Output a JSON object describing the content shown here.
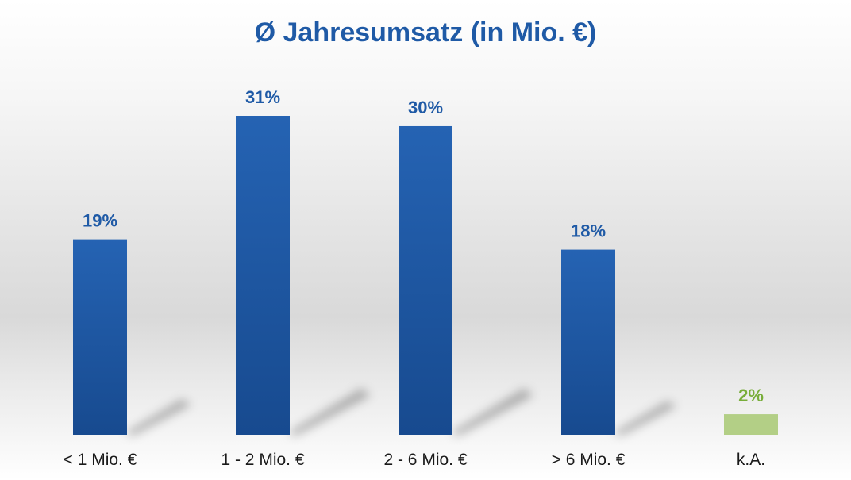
{
  "chart_data": {
    "type": "bar",
    "title": "Ø Jahresumsatz (in Mio. €)",
    "xlabel": "",
    "ylabel": "",
    "ylim": [
      0,
      35
    ],
    "grid": false,
    "legend": "none",
    "categories": [
      "< 1 Mio. €",
      "1 - 2 Mio. €",
      "2 - 6 Mio. €",
      "> 6 Mio. €",
      "k.A."
    ],
    "values": [
      19,
      31,
      30,
      18,
      2
    ],
    "data_labels": [
      "19%",
      "31%",
      "30%",
      "18%",
      "2%"
    ],
    "bar_colors": [
      "#1f5aa6",
      "#1f5aa6",
      "#1f5aa6",
      "#1f5aa6",
      "#b3cf86"
    ],
    "label_colors": [
      "#1f5aa6",
      "#1f5aa6",
      "#1f5aa6",
      "#1f5aa6",
      "#78ad3a"
    ]
  },
  "colors": {
    "title": "#1f5aa6",
    "bar_gradient_top": "#2563b3",
    "bar_gradient_bottom": "#174a8f"
  }
}
